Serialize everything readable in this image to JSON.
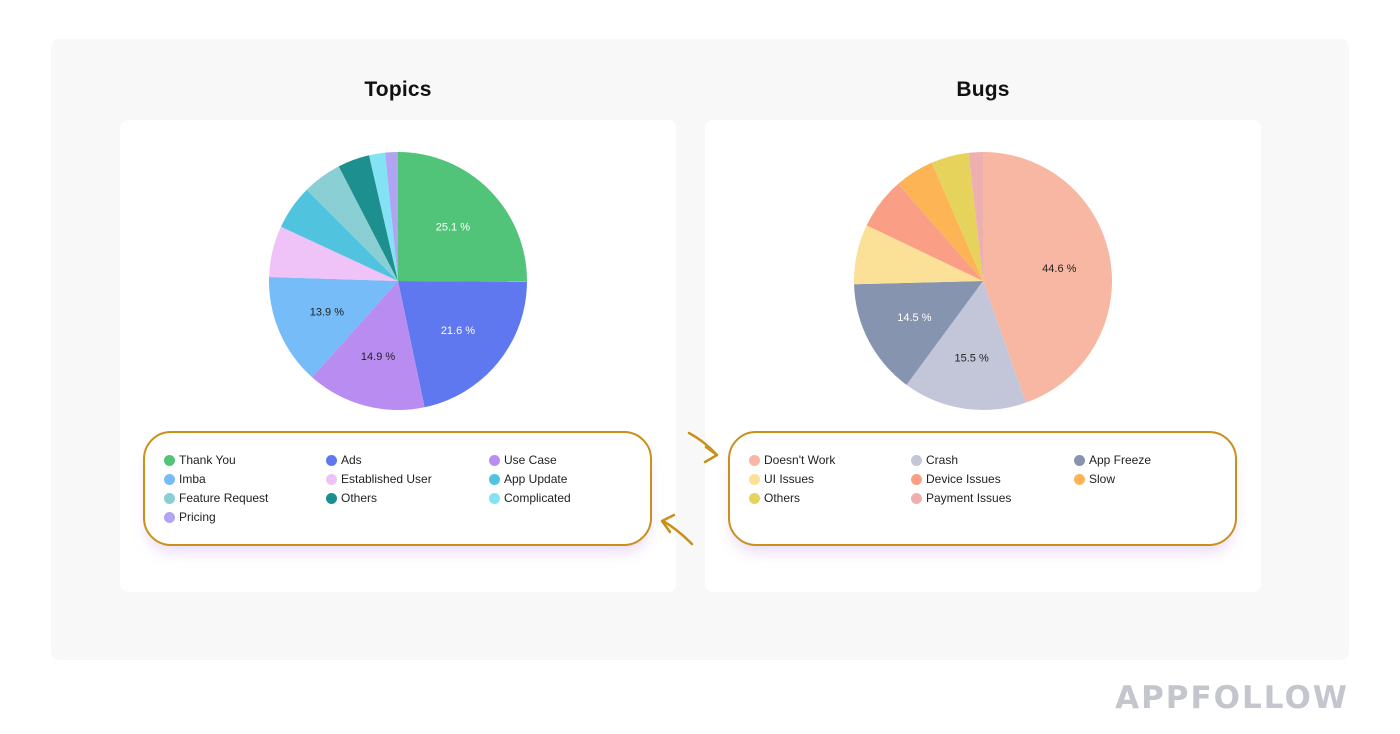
{
  "brand": "APPFOLLOW",
  "colors": {
    "outline": "#c9901a",
    "frame_bg": "#f8f8f8"
  },
  "chart_data": [
    {
      "type": "pie",
      "title": "Topics",
      "slices": [
        {
          "label": "Thank You",
          "value": 25.1,
          "color": "#52c47a",
          "shown_label": "25.1 %",
          "label_color": "#ffffff"
        },
        {
          "label": "Ads",
          "value": 21.6,
          "color": "#5f78f0",
          "shown_label": "21.6 %",
          "label_color": "#ffffff"
        },
        {
          "label": "Use Case",
          "value": 14.9,
          "color": "#b98cf2",
          "shown_label": "14.9 %",
          "label_color": "#222222"
        },
        {
          "label": "Imba",
          "value": 13.9,
          "color": "#76bcf8",
          "shown_label": "13.9 %",
          "label_color": "#222222"
        },
        {
          "label": "Established User",
          "value": 6.4,
          "color": "#efc2f8",
          "shown_label": "",
          "label_color": "#222222"
        },
        {
          "label": "App Update",
          "value": 5.6,
          "color": "#50c3df",
          "shown_label": "",
          "label_color": "#222222"
        },
        {
          "label": "Feature Request",
          "value": 4.9,
          "color": "#89cfd3",
          "shown_label": "",
          "label_color": "#222222"
        },
        {
          "label": "Others",
          "value": 4.0,
          "color": "#1d8f8f",
          "shown_label": "",
          "label_color": "#222222"
        },
        {
          "label": "Complicated",
          "value": 2.0,
          "color": "#84e2f5",
          "shown_label": "",
          "label_color": "#222222"
        },
        {
          "label": "Pricing",
          "value": 1.6,
          "color": "#b0a5f3",
          "shown_label": "",
          "label_color": "#222222"
        }
      ],
      "legend": [
        {
          "label": "Thank You",
          "color": "#52c47a"
        },
        {
          "label": "Ads",
          "color": "#5f78f0"
        },
        {
          "label": "Use Case",
          "color": "#b98cf2"
        },
        {
          "label": "Imba",
          "color": "#76bcf8"
        },
        {
          "label": "Established User",
          "color": "#efc2f8"
        },
        {
          "label": "App Update",
          "color": "#50c3df"
        },
        {
          "label": "Feature Request",
          "color": "#89cfd3"
        },
        {
          "label": "Others",
          "color": "#1d8f8f"
        },
        {
          "label": "Complicated",
          "color": "#84e2f5"
        },
        {
          "label": "Pricing",
          "color": "#b0a5f3"
        }
      ]
    },
    {
      "type": "pie",
      "title": "Bugs",
      "slices": [
        {
          "label": "Doesn't Work",
          "value": 44.6,
          "color": "#f8b7a3",
          "shown_label": "44.6 %",
          "label_color": "#222222"
        },
        {
          "label": "Crash",
          "value": 15.5,
          "color": "#c3c6d9",
          "shown_label": "15.5 %",
          "label_color": "#222222"
        },
        {
          "label": "App Freeze",
          "value": 14.5,
          "color": "#8694b0",
          "shown_label": "14.5 %",
          "label_color": "#ffffff"
        },
        {
          "label": "UI Issues",
          "value": 7.5,
          "color": "#fbe197",
          "shown_label": "",
          "label_color": "#222222"
        },
        {
          "label": "Device Issues",
          "value": 6.5,
          "color": "#fa9f86",
          "shown_label": "",
          "label_color": "#222222"
        },
        {
          "label": "Slow",
          "value": 4.9,
          "color": "#fcb455",
          "shown_label": "",
          "label_color": "#222222"
        },
        {
          "label": "Others",
          "value": 4.7,
          "color": "#e6d35c",
          "shown_label": "",
          "label_color": "#222222"
        },
        {
          "label": "Payment Issues",
          "value": 1.8,
          "color": "#eeb0af",
          "shown_label": "",
          "label_color": "#222222"
        }
      ],
      "legend": [
        {
          "label": "Doesn't Work",
          "color": "#f8b7a3"
        },
        {
          "label": "Crash",
          "color": "#c3c6d9"
        },
        {
          "label": "App Freeze",
          "color": "#8694b0"
        },
        {
          "label": "UI Issues",
          "color": "#fbe197"
        },
        {
          "label": "Device Issues",
          "color": "#fa9f86"
        },
        {
          "label": "Slow",
          "color": "#fcb455"
        },
        {
          "label": "Others",
          "color": "#e6d35c"
        },
        {
          "label": "Payment Issues",
          "color": "#eeb0af"
        }
      ]
    }
  ]
}
